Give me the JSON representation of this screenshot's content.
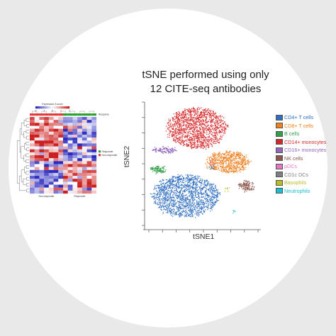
{
  "heatmap_panel": {
    "scale_label": "Expression Z-score",
    "scale_ticks": [
      "-2",
      "-1",
      "0",
      "1",
      "2"
    ],
    "annotation_label": "Response",
    "legend_labels": [
      "Responder",
      "Non-responder"
    ],
    "group_labels": [
      "Non-responder",
      "Responder"
    ],
    "colors": {
      "low": "#2b2bbf",
      "mid": "#ffffff",
      "high": "#cc1f1f",
      "responder": "#2ca02c",
      "non_responder": "#e03a3a"
    }
  },
  "chart_data": {
    "type": "scatter",
    "title": [
      "tSNE performed using only",
      "12 CITE-seq antibodies"
    ],
    "xlabel": "tSNE1",
    "ylabel": "tSNE2",
    "grid": false,
    "legend_position": "right",
    "series": [
      {
        "name": "CD4+ T cells",
        "color": "#2f6fbf",
        "cx": 0.36,
        "cy": -0.52,
        "rx": 0.29,
        "ry": 0.34,
        "n": 1600
      },
      {
        "name": "CD8+ T cells",
        "color": "#f07f1c",
        "cx": 0.74,
        "cy": 0.03,
        "rx": 0.19,
        "ry": 0.17,
        "n": 650
      },
      {
        "name": "B cells",
        "color": "#2f9e44",
        "cx": 0.12,
        "cy": -0.09,
        "rx": 0.06,
        "ry": 0.05,
        "n": 110
      },
      {
        "name": "CD14+ monocytes",
        "color": "#d62728",
        "cx": 0.46,
        "cy": 0.58,
        "rx": 0.26,
        "ry": 0.33,
        "n": 1400
      },
      {
        "name": "CD16+ monocytes",
        "color": "#9467bd",
        "cx": 0.17,
        "cy": 0.22,
        "rx": 0.11,
        "ry": 0.04,
        "n": 120
      },
      {
        "name": "NK cells",
        "color": "#8c564b",
        "cx": 0.9,
        "cy": -0.36,
        "rx": 0.06,
        "ry": 0.08,
        "n": 140
      },
      {
        "name": "pDCs",
        "color": "#e377c2",
        "cx": 0.6,
        "cy": 0.02,
        "rx": 0.02,
        "ry": 0.02,
        "n": 10
      },
      {
        "name": "CD1c DCs",
        "color": "#7f7f7f",
        "cx": 0.6,
        "cy": -0.07,
        "rx": 0.03,
        "ry": 0.03,
        "n": 25
      },
      {
        "name": "Basophils",
        "color": "#bcbd22",
        "cx": 0.72,
        "cy": -0.42,
        "rx": 0.02,
        "ry": 0.02,
        "n": 8
      },
      {
        "name": "Neutrophils",
        "color": "#17becf",
        "cx": 0.78,
        "cy": -0.78,
        "rx": 0.015,
        "ry": 0.02,
        "n": 6
      }
    ]
  }
}
